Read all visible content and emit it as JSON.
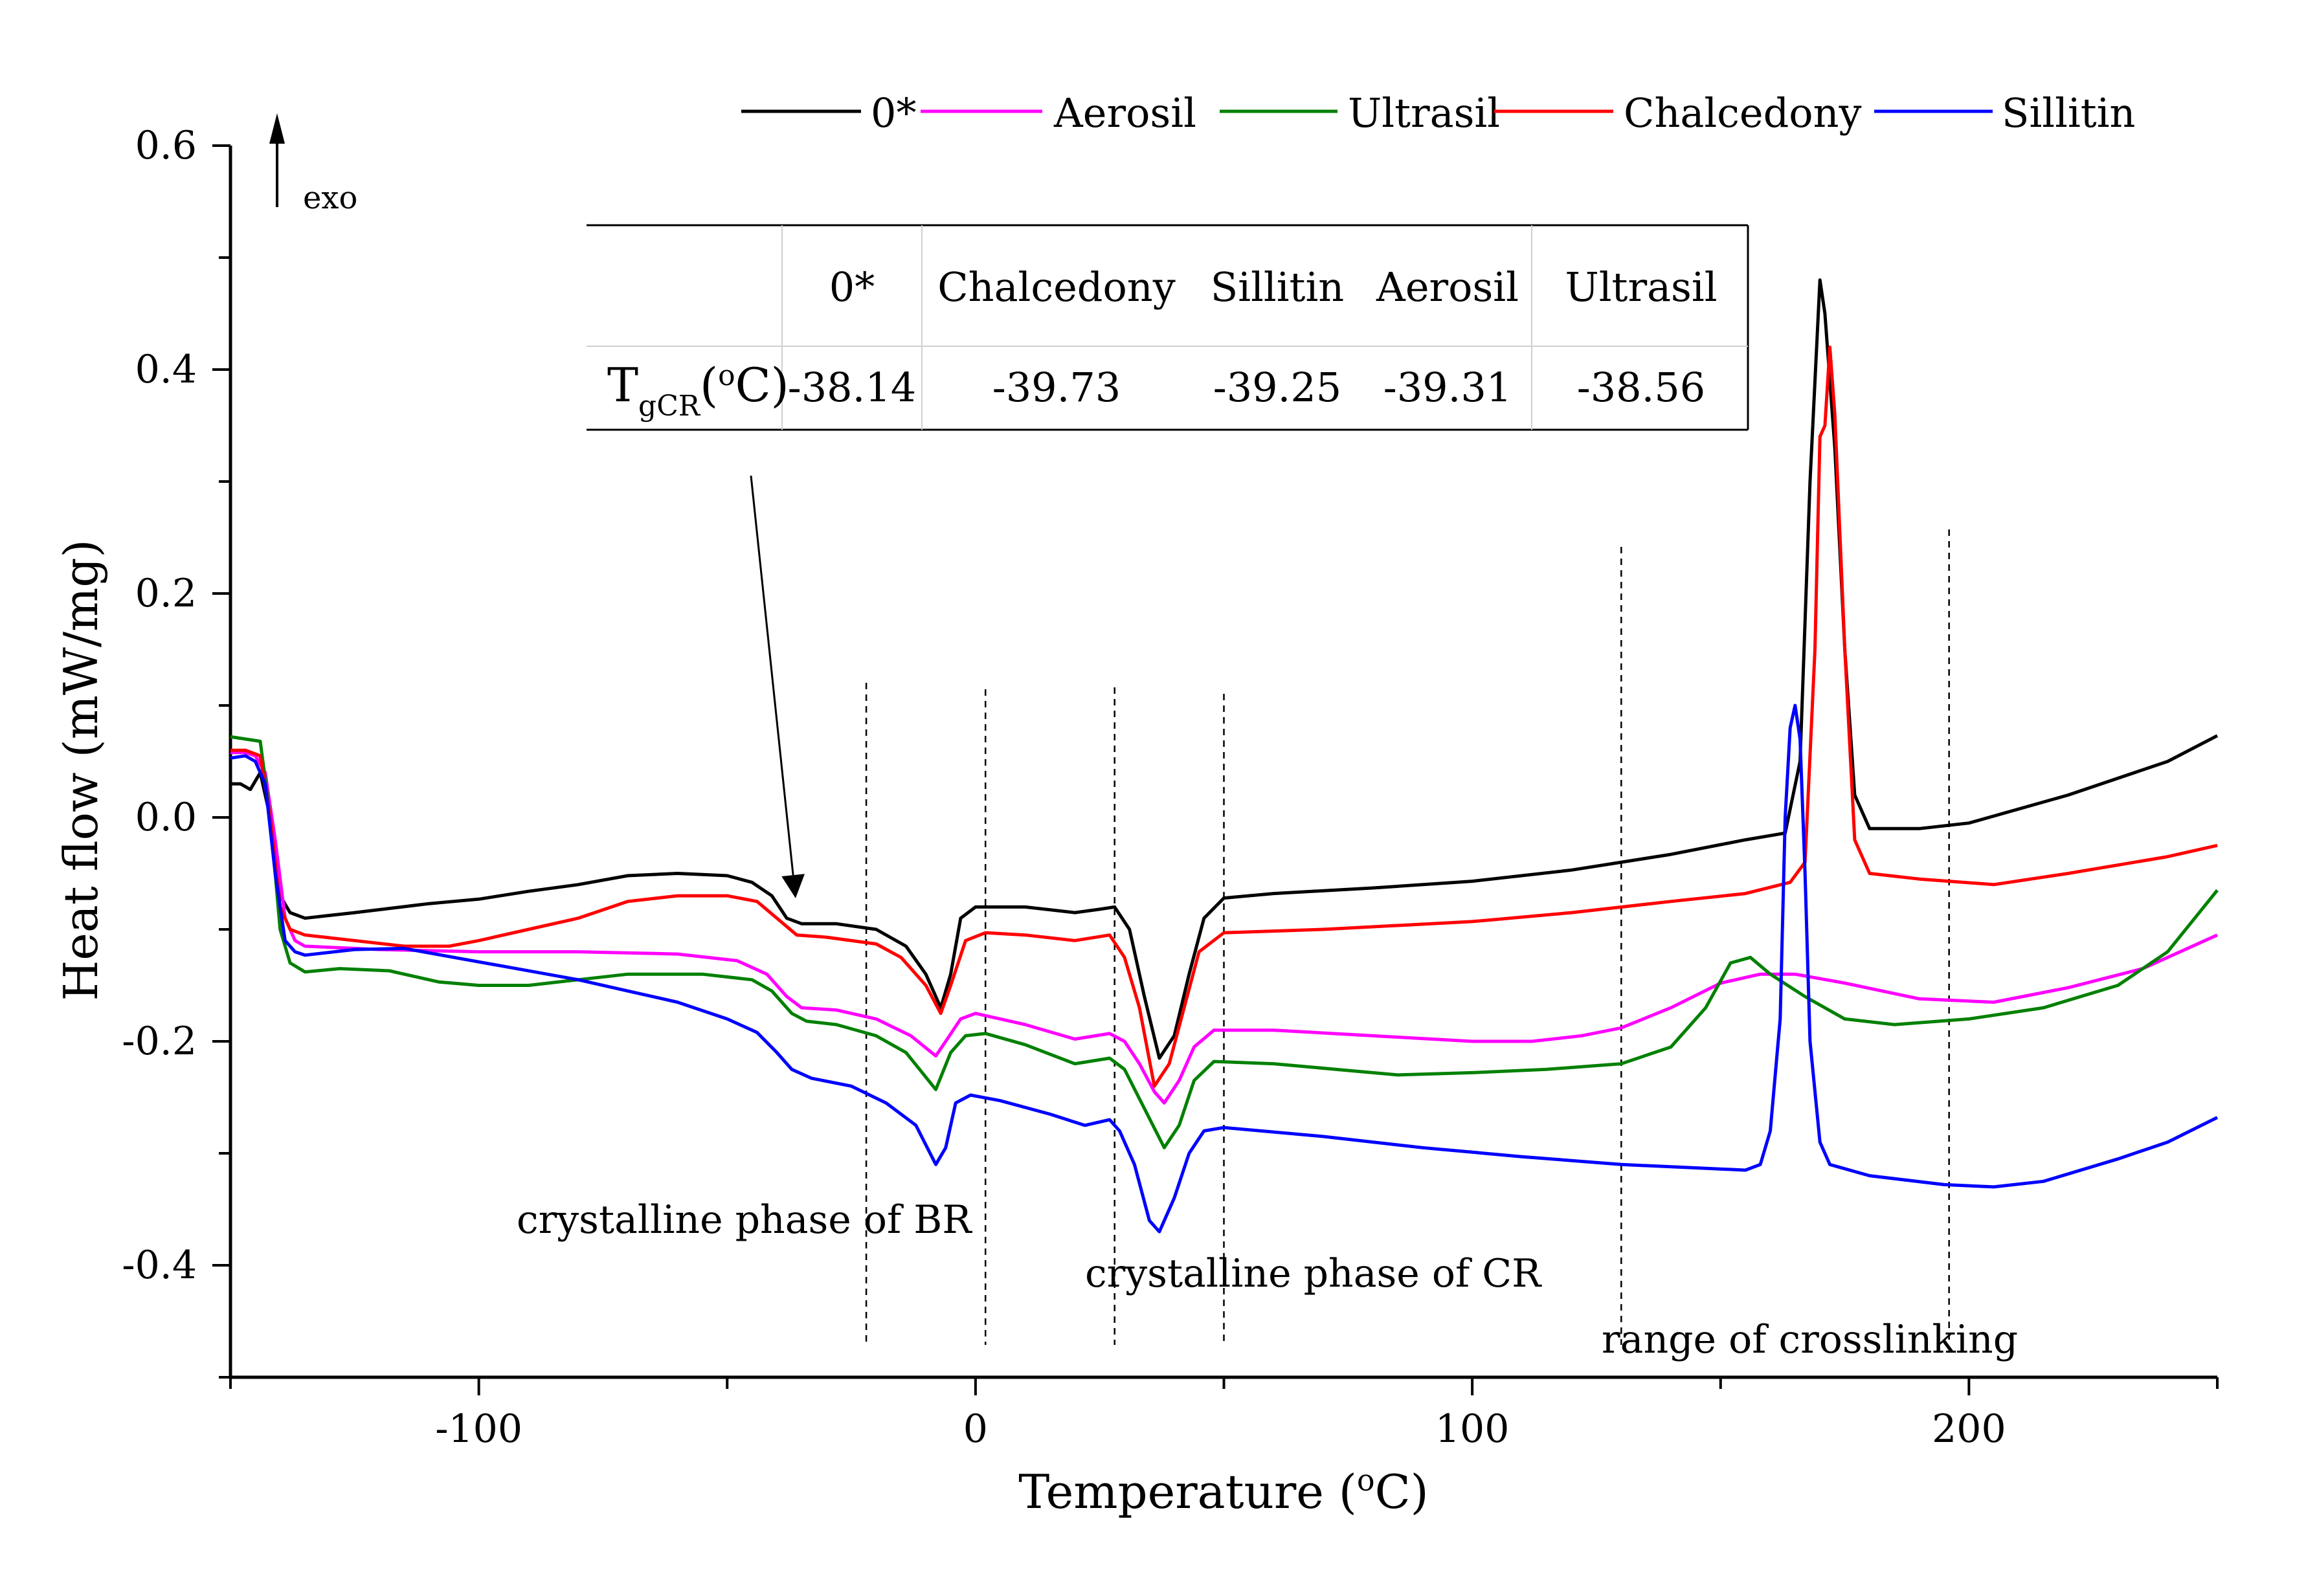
{
  "chart_data": {
    "type": "line",
    "title": "",
    "xlabel": "Temperature (oC)",
    "ylabel": "Heat flow (mW/mg)",
    "xlim": [
      -150,
      250
    ],
    "ylim": [
      -0.5,
      0.6
    ],
    "xticks": [
      -100,
      0,
      100,
      200
    ],
    "xtick_labels": [
      "-100",
      "0",
      "100",
      "200"
    ],
    "yticks": [
      0.6,
      0.4,
      0.2,
      0.0,
      -0.2,
      -0.4
    ],
    "ytick_labels": [
      "0.6",
      "0.4",
      "0.2",
      "0.0",
      "-0.2",
      "-0.4"
    ],
    "grid": false,
    "legend_position": "top",
    "exo_label": "exo",
    "series": [
      {
        "name": "0*",
        "color": "#000000",
        "points": [
          [
            -150,
            0.03
          ],
          [
            -148,
            0.03
          ],
          [
            -146,
            0.025
          ],
          [
            -144,
            0.04
          ],
          [
            -142,
            0.0
          ],
          [
            -140,
            -0.07
          ],
          [
            -138,
            -0.085
          ],
          [
            -135,
            -0.09
          ],
          [
            -125,
            -0.085
          ],
          [
            -110,
            -0.077
          ],
          [
            -100,
            -0.073
          ],
          [
            -90,
            -0.066
          ],
          [
            -80,
            -0.06
          ],
          [
            -70,
            -0.052
          ],
          [
            -60,
            -0.05
          ],
          [
            -50,
            -0.052
          ],
          [
            -45,
            -0.058
          ],
          [
            -41,
            -0.07
          ],
          [
            -38,
            -0.09
          ],
          [
            -35,
            -0.095
          ],
          [
            -28,
            -0.095
          ],
          [
            -20,
            -0.1
          ],
          [
            -14,
            -0.115
          ],
          [
            -10,
            -0.14
          ],
          [
            -7,
            -0.17
          ],
          [
            -5,
            -0.14
          ],
          [
            -3,
            -0.09
          ],
          [
            0,
            -0.08
          ],
          [
            10,
            -0.08
          ],
          [
            20,
            -0.085
          ],
          [
            25,
            -0.082
          ],
          [
            28,
            -0.08
          ],
          [
            31,
            -0.1
          ],
          [
            34,
            -0.16
          ],
          [
            37,
            -0.215
          ],
          [
            40,
            -0.195
          ],
          [
            43,
            -0.14
          ],
          [
            46,
            -0.09
          ],
          [
            50,
            -0.072
          ],
          [
            60,
            -0.068
          ],
          [
            80,
            -0.063
          ],
          [
            100,
            -0.057
          ],
          [
            120,
            -0.047
          ],
          [
            140,
            -0.033
          ],
          [
            155,
            -0.02
          ],
          [
            163,
            -0.014
          ],
          [
            166,
            0.05
          ],
          [
            168,
            0.3
          ],
          [
            170,
            0.48
          ],
          [
            171,
            0.45
          ],
          [
            173,
            0.33
          ],
          [
            175,
            0.15
          ],
          [
            177,
            0.02
          ],
          [
            180,
            -0.01
          ],
          [
            190,
            -0.01
          ],
          [
            200,
            -0.005
          ],
          [
            220,
            0.02
          ],
          [
            240,
            0.05
          ],
          [
            250,
            0.073
          ]
        ]
      },
      {
        "name": "Aerosil",
        "color": "#ff00ff",
        "points": [
          [
            -150,
            0.058
          ],
          [
            -147,
            0.058
          ],
          [
            -145,
            0.055
          ],
          [
            -143,
            0.04
          ],
          [
            -141,
            -0.02
          ],
          [
            -139,
            -0.09
          ],
          [
            -137,
            -0.11
          ],
          [
            -135,
            -0.115
          ],
          [
            -120,
            -0.118
          ],
          [
            -100,
            -0.12
          ],
          [
            -80,
            -0.12
          ],
          [
            -60,
            -0.122
          ],
          [
            -48,
            -0.128
          ],
          [
            -42,
            -0.14
          ],
          [
            -38,
            -0.16
          ],
          [
            -35,
            -0.17
          ],
          [
            -28,
            -0.172
          ],
          [
            -20,
            -0.18
          ],
          [
            -13,
            -0.195
          ],
          [
            -8,
            -0.213
          ],
          [
            -6,
            -0.2
          ],
          [
            -3,
            -0.18
          ],
          [
            0,
            -0.175
          ],
          [
            10,
            -0.185
          ],
          [
            20,
            -0.198
          ],
          [
            27,
            -0.193
          ],
          [
            30,
            -0.2
          ],
          [
            33,
            -0.22
          ],
          [
            36,
            -0.245
          ],
          [
            38,
            -0.255
          ],
          [
            41,
            -0.235
          ],
          [
            44,
            -0.205
          ],
          [
            48,
            -0.19
          ],
          [
            60,
            -0.19
          ],
          [
            80,
            -0.195
          ],
          [
            100,
            -0.2
          ],
          [
            112,
            -0.2
          ],
          [
            122,
            -0.195
          ],
          [
            130,
            -0.188
          ],
          [
            140,
            -0.17
          ],
          [
            150,
            -0.148
          ],
          [
            158,
            -0.14
          ],
          [
            165,
            -0.14
          ],
          [
            175,
            -0.148
          ],
          [
            190,
            -0.162
          ],
          [
            205,
            -0.165
          ],
          [
            220,
            -0.152
          ],
          [
            235,
            -0.135
          ],
          [
            250,
            -0.105
          ]
        ]
      },
      {
        "name": "Ultrasil",
        "color": "#008000",
        "points": [
          [
            -150,
            0.072
          ],
          [
            -147,
            0.07
          ],
          [
            -144,
            0.068
          ],
          [
            -142,
            0.0
          ],
          [
            -140,
            -0.1
          ],
          [
            -138,
            -0.13
          ],
          [
            -135,
            -0.138
          ],
          [
            -128,
            -0.135
          ],
          [
            -118,
            -0.137
          ],
          [
            -108,
            -0.147
          ],
          [
            -100,
            -0.15
          ],
          [
            -90,
            -0.15
          ],
          [
            -80,
            -0.145
          ],
          [
            -70,
            -0.14
          ],
          [
            -55,
            -0.14
          ],
          [
            -45,
            -0.145
          ],
          [
            -41,
            -0.155
          ],
          [
            -37,
            -0.175
          ],
          [
            -34,
            -0.182
          ],
          [
            -28,
            -0.185
          ],
          [
            -20,
            -0.195
          ],
          [
            -14,
            -0.21
          ],
          [
            -8,
            -0.243
          ],
          [
            -5,
            -0.21
          ],
          [
            -2,
            -0.195
          ],
          [
            2,
            -0.193
          ],
          [
            10,
            -0.203
          ],
          [
            20,
            -0.22
          ],
          [
            27,
            -0.215
          ],
          [
            30,
            -0.225
          ],
          [
            34,
            -0.26
          ],
          [
            38,
            -0.295
          ],
          [
            41,
            -0.275
          ],
          [
            44,
            -0.235
          ],
          [
            48,
            -0.218
          ],
          [
            60,
            -0.22
          ],
          [
            85,
            -0.23
          ],
          [
            100,
            -0.228
          ],
          [
            115,
            -0.225
          ],
          [
            130,
            -0.22
          ],
          [
            140,
            -0.205
          ],
          [
            147,
            -0.17
          ],
          [
            152,
            -0.13
          ],
          [
            156,
            -0.125
          ],
          [
            160,
            -0.14
          ],
          [
            167,
            -0.16
          ],
          [
            175,
            -0.18
          ],
          [
            185,
            -0.185
          ],
          [
            200,
            -0.18
          ],
          [
            215,
            -0.17
          ],
          [
            230,
            -0.15
          ],
          [
            240,
            -0.12
          ],
          [
            250,
            -0.065
          ]
        ]
      },
      {
        "name": "Chalcedony",
        "color": "#ff0000",
        "points": [
          [
            -150,
            0.06
          ],
          [
            -147,
            0.06
          ],
          [
            -144,
            0.055
          ],
          [
            -142,
            0.0
          ],
          [
            -140,
            -0.08
          ],
          [
            -138,
            -0.1
          ],
          [
            -135,
            -0.105
          ],
          [
            -125,
            -0.11
          ],
          [
            -115,
            -0.115
          ],
          [
            -106,
            -0.115
          ],
          [
            -100,
            -0.11
          ],
          [
            -90,
            -0.1
          ],
          [
            -80,
            -0.09
          ],
          [
            -70,
            -0.075
          ],
          [
            -60,
            -0.07
          ],
          [
            -50,
            -0.07
          ],
          [
            -44,
            -0.075
          ],
          [
            -40,
            -0.09
          ],
          [
            -36,
            -0.105
          ],
          [
            -30,
            -0.107
          ],
          [
            -20,
            -0.113
          ],
          [
            -15,
            -0.125
          ],
          [
            -10,
            -0.15
          ],
          [
            -7,
            -0.175
          ],
          [
            -5,
            -0.15
          ],
          [
            -2,
            -0.11
          ],
          [
            2,
            -0.103
          ],
          [
            10,
            -0.105
          ],
          [
            20,
            -0.11
          ],
          [
            27,
            -0.105
          ],
          [
            30,
            -0.125
          ],
          [
            33,
            -0.17
          ],
          [
            36,
            -0.24
          ],
          [
            39,
            -0.22
          ],
          [
            42,
            -0.17
          ],
          [
            45,
            -0.12
          ],
          [
            50,
            -0.103
          ],
          [
            70,
            -0.1
          ],
          [
            100,
            -0.093
          ],
          [
            120,
            -0.085
          ],
          [
            140,
            -0.075
          ],
          [
            155,
            -0.068
          ],
          [
            164,
            -0.058
          ],
          [
            167,
            -0.04
          ],
          [
            169,
            0.15
          ],
          [
            170,
            0.34
          ],
          [
            171,
            0.35
          ],
          [
            172,
            0.42
          ],
          [
            173,
            0.36
          ],
          [
            175,
            0.15
          ],
          [
            177,
            -0.02
          ],
          [
            180,
            -0.05
          ],
          [
            190,
            -0.055
          ],
          [
            205,
            -0.06
          ],
          [
            220,
            -0.05
          ],
          [
            240,
            -0.035
          ],
          [
            250,
            -0.025
          ]
        ]
      },
      {
        "name": "Sillitin",
        "color": "#0000ff",
        "points": [
          [
            -150,
            0.053
          ],
          [
            -147,
            0.055
          ],
          [
            -145,
            0.05
          ],
          [
            -143,
            0.03
          ],
          [
            -141,
            -0.05
          ],
          [
            -139,
            -0.11
          ],
          [
            -137,
            -0.12
          ],
          [
            -135,
            -0.123
          ],
          [
            -125,
            -0.118
          ],
          [
            -115,
            -0.117
          ],
          [
            -105,
            -0.125
          ],
          [
            -95,
            -0.133
          ],
          [
            -80,
            -0.145
          ],
          [
            -70,
            -0.155
          ],
          [
            -60,
            -0.165
          ],
          [
            -50,
            -0.18
          ],
          [
            -44,
            -0.192
          ],
          [
            -40,
            -0.21
          ],
          [
            -37,
            -0.225
          ],
          [
            -33,
            -0.233
          ],
          [
            -25,
            -0.24
          ],
          [
            -18,
            -0.255
          ],
          [
            -12,
            -0.275
          ],
          [
            -8,
            -0.31
          ],
          [
            -6,
            -0.295
          ],
          [
            -4,
            -0.255
          ],
          [
            -1,
            -0.248
          ],
          [
            5,
            -0.253
          ],
          [
            15,
            -0.265
          ],
          [
            22,
            -0.275
          ],
          [
            27,
            -0.27
          ],
          [
            29,
            -0.28
          ],
          [
            32,
            -0.31
          ],
          [
            35,
            -0.36
          ],
          [
            37,
            -0.37
          ],
          [
            40,
            -0.34
          ],
          [
            43,
            -0.3
          ],
          [
            46,
            -0.28
          ],
          [
            50,
            -0.277
          ],
          [
            70,
            -0.285
          ],
          [
            90,
            -0.295
          ],
          [
            110,
            -0.303
          ],
          [
            130,
            -0.31
          ],
          [
            145,
            -0.313
          ],
          [
            155,
            -0.315
          ],
          [
            158,
            -0.31
          ],
          [
            160,
            -0.28
          ],
          [
            162,
            -0.18
          ],
          [
            163,
            0.0
          ],
          [
            164,
            0.08
          ],
          [
            165,
            0.1
          ],
          [
            166,
            0.07
          ],
          [
            167,
            -0.05
          ],
          [
            168,
            -0.2
          ],
          [
            170,
            -0.29
          ],
          [
            172,
            -0.31
          ],
          [
            180,
            -0.32
          ],
          [
            195,
            -0.328
          ],
          [
            205,
            -0.33
          ],
          [
            215,
            -0.325
          ],
          [
            230,
            -0.305
          ],
          [
            240,
            -0.29
          ],
          [
            250,
            -0.268
          ]
        ]
      }
    ],
    "dashed_lines": [
      -22,
      2,
      28,
      50,
      130,
      196
    ],
    "annotations": [
      {
        "text": "crystalline phase of BR"
      },
      {
        "text": "crystalline phase of CR"
      },
      {
        "text": "range of crosslinking"
      }
    ],
    "inset_table": {
      "headers": [
        "",
        "0*",
        "Chalcedony",
        "Sillitin",
        "Aerosil",
        "Ultrasil"
      ],
      "row_label_main": "T",
      "row_label_sub": "gCR",
      "row_label_unit": "(oC)",
      "values": [
        "-38.14",
        "-39.73",
        "-39.25",
        "-39.31",
        "-38.56"
      ]
    }
  }
}
